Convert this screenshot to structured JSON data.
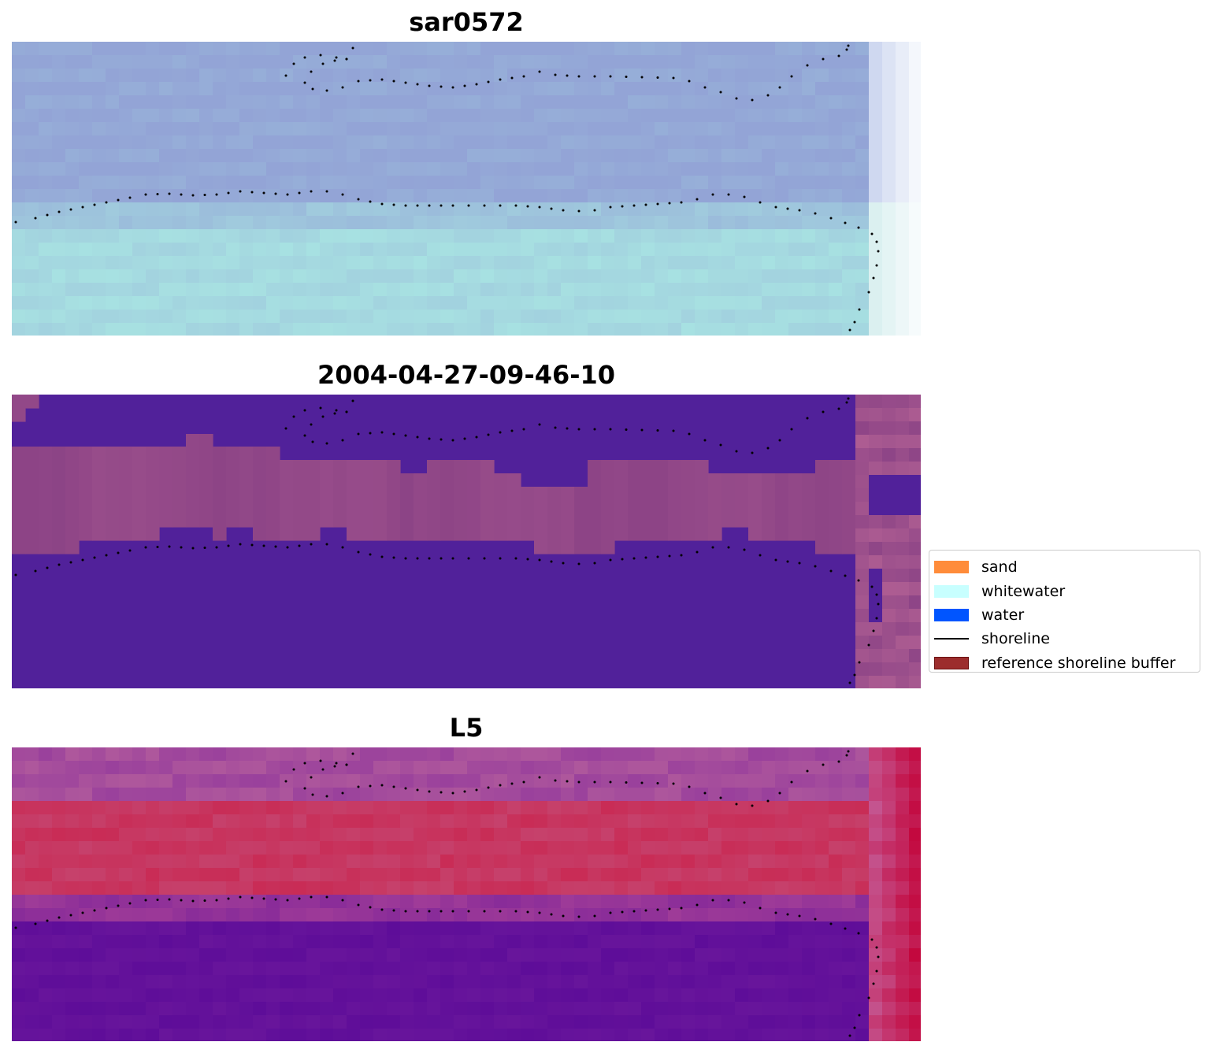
{
  "panels": [
    {
      "title": "sar0572",
      "kind": "sar"
    },
    {
      "title": "2004-04-27-09-46-10",
      "kind": "classified"
    },
    {
      "title": "L5",
      "kind": "l5"
    }
  ],
  "legend": {
    "items": [
      {
        "label": "sand",
        "type": "patch",
        "color": "#ff8c3a"
      },
      {
        "label": "whitewater",
        "type": "patch",
        "color": "#c8ffff"
      },
      {
        "label": "water",
        "type": "patch",
        "color": "#0055ff"
      },
      {
        "label": "shoreline",
        "type": "line",
        "color": "#000000"
      },
      {
        "label": "reference shoreline buffer",
        "type": "patch",
        "color": "#9c2d2d",
        "edge": "#6b1010"
      }
    ]
  },
  "colors": {
    "sar_top": "#93a4d6",
    "sar_bottom": "#a8e3e2",
    "class_water": "#51219a",
    "class_sand": "#924888",
    "class_edge": "#b86596",
    "l5_top": "#a44c9c",
    "l5_band": "#c8305a",
    "l5_water": "#63119a",
    "l5_edge": "#c3083e",
    "shoreline_dots": "#000000"
  }
}
